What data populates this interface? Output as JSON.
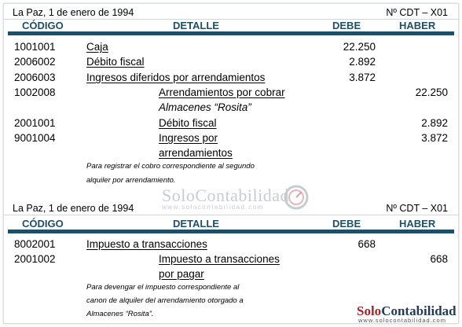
{
  "colors": {
    "header": "#1f4e68",
    "brand_red": "#a4262c",
    "brand_dark": "#1f3b57"
  },
  "entry1": {
    "date": "La Paz, 1 de enero de 1994",
    "ref": "Nº CDT – X01",
    "headers": {
      "code": "CÓDIGO",
      "detail": "DETALLE",
      "debit": "DEBE",
      "credit": "HABER"
    },
    "rows": [
      {
        "code": "1001001",
        "detail": "Caja",
        "debit": "22.250",
        "credit": ""
      },
      {
        "code": "2006002",
        "detail": "Débito fiscal",
        "debit": "2.892",
        "credit": ""
      },
      {
        "code": "2006003",
        "detail": "Ingresos diferidos por arrendamientos",
        "debit": "3.872",
        "credit": ""
      },
      {
        "code": "1002008",
        "detail": "Arrendamientos por cobrar",
        "detail2": "Almacenes “Rosita”",
        "debit": "",
        "credit": "22.250"
      },
      {
        "code": "2001001",
        "detail": "Débito fiscal",
        "debit": "",
        "credit": "2.892"
      },
      {
        "code": "9001004",
        "detail": "Ingresos por",
        "detail2": "arrendamientos",
        "debit": "",
        "credit": "3.872"
      }
    ],
    "note_line1": "Para registrar el cobro correspondiente al segundo",
    "note_line2": "alquiler por arrendamiento."
  },
  "watermark": {
    "text": "SoloContabilidad",
    "url": "www.solocontabilidad.com"
  },
  "entry2": {
    "date": "La Paz, 1 de enero de 1994",
    "ref": "Nº CDT – X01",
    "headers": {
      "code": "CÓDIGO",
      "detail": "DETALLE",
      "debit": "DEBE",
      "credit": "HABER"
    },
    "rows": [
      {
        "code": "8002001",
        "detail": "Impuesto a transacciones",
        "debit": "668",
        "credit": ""
      },
      {
        "code": "2001002",
        "detail": "Impuesto a transacciones",
        "detail2": "por pagar",
        "debit": "",
        "credit": "668"
      }
    ],
    "note_line1": "Para devengar el impuesto correspondiente al",
    "note_line2": "canon de alquiler del arrendamiento otorgado a",
    "note_line3": "Almacenes “Rosita”."
  },
  "logo": {
    "solo": "Solo",
    "contabilidad": "Contabilidad",
    "url": "www.solocontabilidad.com"
  }
}
